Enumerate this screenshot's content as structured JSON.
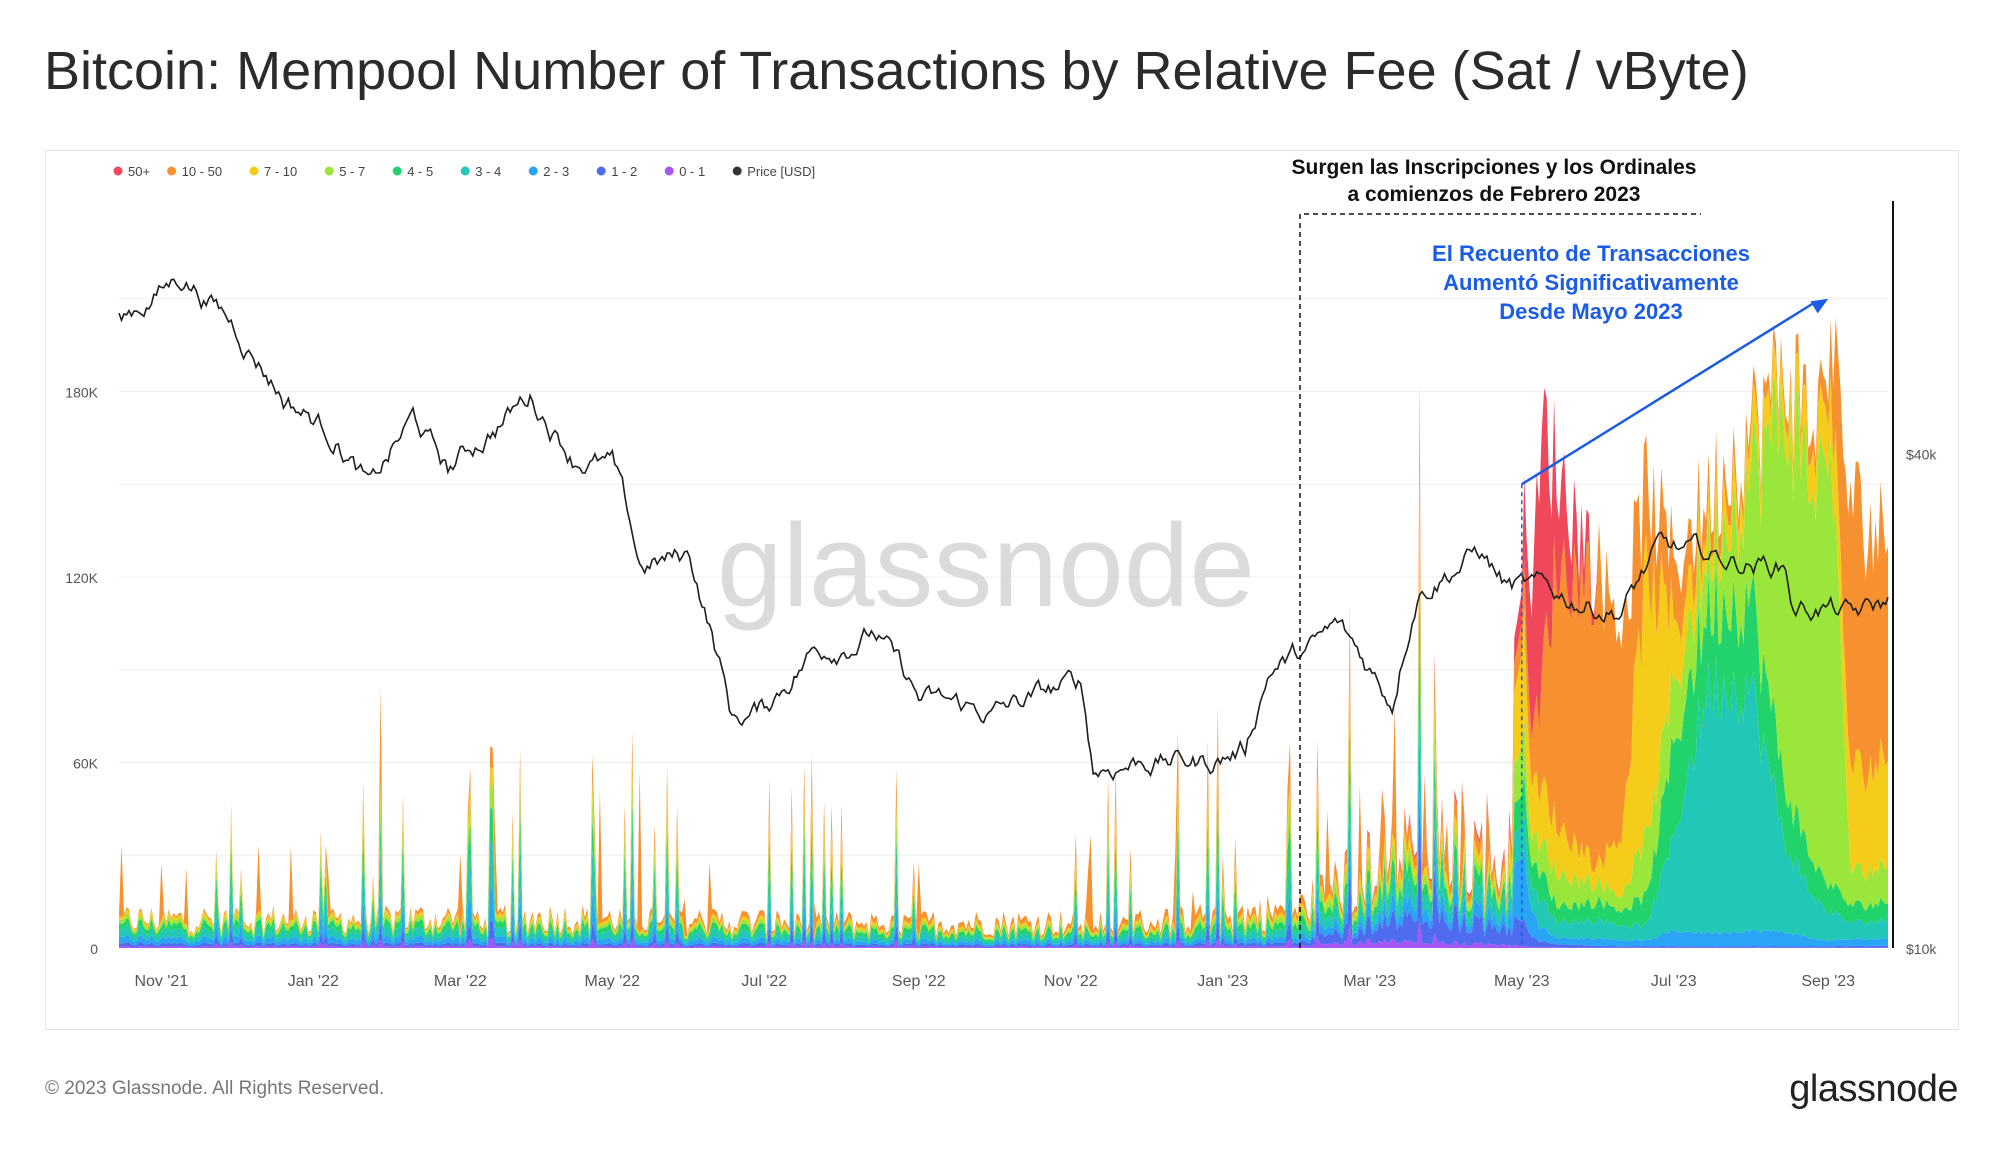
{
  "title": "Bitcoin: Mempool Number of Transactions by Relative Fee (Sat / vByte)",
  "footer": {
    "copyright": "© 2023 Glassnode. All Rights Reserved.",
    "logo": "glassnode"
  },
  "watermark": "glassnode",
  "chart_data": {
    "type": "area",
    "title": "Bitcoin: Mempool Number of Transactions by Relative Fee (Sat / vByte)",
    "stacked": true,
    "legend_position": "top-left",
    "grid": true,
    "x_range": [
      "2021-10-15",
      "2023-09-25"
    ],
    "x_ticks": [
      {
        "date": "2021-11-01",
        "label": "Nov '21"
      },
      {
        "date": "2022-01-01",
        "label": "Jan '22"
      },
      {
        "date": "2022-03-01",
        "label": "Mar '22"
      },
      {
        "date": "2022-05-01",
        "label": "May '22"
      },
      {
        "date": "2022-07-01",
        "label": "Jul '22"
      },
      {
        "date": "2022-09-01",
        "label": "Sep '22"
      },
      {
        "date": "2022-11-01",
        "label": "Nov '22"
      },
      {
        "date": "2023-01-01",
        "label": "Jan '23"
      },
      {
        "date": "2023-03-01",
        "label": "Mar '23"
      },
      {
        "date": "2023-05-01",
        "label": "May '23"
      },
      {
        "date": "2023-07-01",
        "label": "Jul '23"
      },
      {
        "date": "2023-09-01",
        "label": "Sep '23"
      }
    ],
    "y_left": {
      "min": 0,
      "max": 240000,
      "ticks": [
        {
          "v": 0,
          "label": "0"
        },
        {
          "v": 60000,
          "label": "60K"
        },
        {
          "v": 120000,
          "label": "120K"
        },
        {
          "v": 180000,
          "label": "180K"
        }
      ]
    },
    "y_right": {
      "scale": "log",
      "min": 10000,
      "max": 80000,
      "ticks": [
        {
          "v": 10000,
          "label": "$10k"
        },
        {
          "v": 40000,
          "label": "$40k"
        }
      ]
    },
    "series": [
      {
        "name": "0 - 1",
        "color": "#a855f7"
      },
      {
        "name": "1 - 2",
        "color": "#4f6cf0"
      },
      {
        "name": "2 - 3",
        "color": "#2aa4f4"
      },
      {
        "name": "3 - 4",
        "color": "#22c7b8"
      },
      {
        "name": "4 - 5",
        "color": "#22d36b"
      },
      {
        "name": "5 - 7",
        "color": "#9be63a"
      },
      {
        "name": "7 - 10",
        "color": "#f6cc1a"
      },
      {
        "name": "10 - 50",
        "color": "#f7902f"
      },
      {
        "name": "50+",
        "color": "#f0485a"
      }
    ],
    "legend": [
      {
        "name": "50+",
        "color": "#f0485a"
      },
      {
        "name": "10 - 50",
        "color": "#f7902f"
      },
      {
        "name": "7 - 10",
        "color": "#f6cc1a"
      },
      {
        "name": "5 - 7",
        "color": "#9be63a"
      },
      {
        "name": "4 - 5",
        "color": "#22d36b"
      },
      {
        "name": "3 - 4",
        "color": "#22c7b8"
      },
      {
        "name": "2 - 3",
        "color": "#2aa4f4"
      },
      {
        "name": "1 - 2",
        "color": "#4f6cf0"
      },
      {
        "name": "0 - 1",
        "color": "#a855f7"
      },
      {
        "name": "Price [USD]",
        "color": "#333333"
      }
    ],
    "stack_samples": [
      {
        "date": "2021-10-15",
        "v": [
          400,
          800,
          1500,
          2000,
          1500,
          1000,
          800,
          400,
          0
        ]
      },
      {
        "date": "2022-01-01",
        "v": [
          400,
          800,
          1500,
          2000,
          1500,
          1000,
          800,
          600,
          0
        ]
      },
      {
        "date": "2022-04-01",
        "v": [
          400,
          800,
          1500,
          2000,
          1500,
          1000,
          800,
          1000,
          0
        ]
      },
      {
        "date": "2022-08-01",
        "v": [
          300,
          700,
          1000,
          1500,
          1200,
          800,
          700,
          1200,
          0
        ]
      },
      {
        "date": "2022-12-01",
        "v": [
          300,
          700,
          1000,
          1500,
          1200,
          800,
          700,
          1500,
          0
        ]
      },
      {
        "date": "2023-02-01",
        "v": [
          500,
          1000,
          1500,
          2000,
          2000,
          1500,
          1000,
          2000,
          0
        ]
      },
      {
        "date": "2023-03-01",
        "v": [
          2000,
          5000,
          3000,
          4000,
          3000,
          3000,
          2000,
          3000,
          500
        ]
      },
      {
        "date": "2023-04-01",
        "v": [
          1500,
          8000,
          4000,
          5000,
          4000,
          3000,
          3000,
          4000,
          1000
        ]
      },
      {
        "date": "2023-04-25",
        "v": [
          1000,
          5000,
          3000,
          4000,
          3000,
          2000,
          2000,
          3000,
          1000
        ]
      },
      {
        "date": "2023-05-01",
        "v": [
          500,
          8000,
          20000,
          10000,
          10000,
          15000,
          30000,
          10000,
          10000
        ]
      },
      {
        "date": "2023-05-08",
        "v": [
          300,
          2000,
          5000,
          10000,
          10000,
          10000,
          20000,
          30000,
          90000
        ]
      },
      {
        "date": "2023-05-15",
        "v": [
          200,
          1000,
          2000,
          5000,
          5000,
          10000,
          15000,
          80000,
          30000
        ]
      },
      {
        "date": "2023-06-01",
        "v": [
          100,
          500,
          2000,
          5000,
          5000,
          5000,
          5000,
          80000,
          0
        ]
      },
      {
        "date": "2023-06-10",
        "v": [
          100,
          500,
          2000,
          5000,
          5000,
          5000,
          20000,
          70000,
          0
        ]
      },
      {
        "date": "2023-06-20",
        "v": [
          100,
          500,
          2000,
          5000,
          10000,
          20000,
          90000,
          30000,
          0
        ]
      },
      {
        "date": "2023-07-01",
        "v": [
          100,
          500,
          5000,
          30000,
          30000,
          20000,
          20000,
          20000,
          0
        ]
      },
      {
        "date": "2023-07-15",
        "v": [
          100,
          500,
          5000,
          90000,
          30000,
          20000,
          10000,
          10000,
          0
        ]
      },
      {
        "date": "2023-08-01",
        "v": [
          100,
          500,
          5000,
          80000,
          30000,
          40000,
          10000,
          5000,
          0
        ]
      },
      {
        "date": "2023-08-15",
        "v": [
          100,
          500,
          5000,
          30000,
          20000,
          130000,
          10000,
          5000,
          0
        ]
      },
      {
        "date": "2023-09-01",
        "v": [
          100,
          500,
          2000,
          10000,
          10000,
          160000,
          20000,
          10000,
          0
        ]
      },
      {
        "date": "2023-09-10",
        "v": [
          100,
          500,
          2000,
          5000,
          5000,
          10000,
          30000,
          80000,
          0
        ]
      },
      {
        "date": "2023-09-25",
        "v": [
          100,
          500,
          2000,
          5000,
          5000,
          10000,
          30000,
          60000,
          0
        ]
      }
    ],
    "total_samples": [
      {
        "date": "2023-05-05",
        "v": 120000
      },
      {
        "date": "2023-05-10",
        "v": 175000
      },
      {
        "date": "2023-05-20",
        "v": 150000
      },
      {
        "date": "2023-06-10",
        "v": 110000
      },
      {
        "date": "2023-06-20",
        "v": 155000
      },
      {
        "date": "2023-07-01",
        "v": 130000
      },
      {
        "date": "2023-07-20",
        "v": 160000
      },
      {
        "date": "2023-08-01",
        "v": 175000
      },
      {
        "date": "2023-08-15",
        "v": 195000
      },
      {
        "date": "2023-08-28",
        "v": 175000
      },
      {
        "date": "2023-09-01",
        "v": 210000
      },
      {
        "date": "2023-09-10",
        "v": 150000
      },
      {
        "date": "2023-09-20",
        "v": 140000
      }
    ],
    "price_series": [
      {
        "date": "2021-10-15",
        "v": 58000
      },
      {
        "date": "2021-11-10",
        "v": 66000
      },
      {
        "date": "2021-12-01",
        "v": 57000
      },
      {
        "date": "2021-12-20",
        "v": 47000
      },
      {
        "date": "2022-01-10",
        "v": 42000
      },
      {
        "date": "2022-01-24",
        "v": 36000
      },
      {
        "date": "2022-02-10",
        "v": 44000
      },
      {
        "date": "2022-02-24",
        "v": 38000
      },
      {
        "date": "2022-03-29",
        "v": 47000
      },
      {
        "date": "2022-04-15",
        "v": 40000
      },
      {
        "date": "2022-05-01",
        "v": 38500
      },
      {
        "date": "2022-05-12",
        "v": 29000
      },
      {
        "date": "2022-06-01",
        "v": 30000
      },
      {
        "date": "2022-06-18",
        "v": 19000
      },
      {
        "date": "2022-07-01",
        "v": 19500
      },
      {
        "date": "2022-07-20",
        "v": 23000
      },
      {
        "date": "2022-08-14",
        "v": 24300
      },
      {
        "date": "2022-09-01",
        "v": 20000
      },
      {
        "date": "2022-09-15",
        "v": 19700
      },
      {
        "date": "2022-10-01",
        "v": 19300
      },
      {
        "date": "2022-10-25",
        "v": 20500
      },
      {
        "date": "2022-11-05",
        "v": 21000
      },
      {
        "date": "2022-11-10",
        "v": 16500
      },
      {
        "date": "2022-12-01",
        "v": 17000
      },
      {
        "date": "2022-12-25",
        "v": 16800
      },
      {
        "date": "2023-01-10",
        "v": 17500
      },
      {
        "date": "2023-01-20",
        "v": 22000
      },
      {
        "date": "2023-02-05",
        "v": 23000
      },
      {
        "date": "2023-02-16",
        "v": 24500
      },
      {
        "date": "2023-03-10",
        "v": 20000
      },
      {
        "date": "2023-03-20",
        "v": 27500
      },
      {
        "date": "2023-04-14",
        "v": 30400
      },
      {
        "date": "2023-04-25",
        "v": 27500
      },
      {
        "date": "2023-05-10",
        "v": 27000
      },
      {
        "date": "2023-06-10",
        "v": 25800
      },
      {
        "date": "2023-06-25",
        "v": 30500
      },
      {
        "date": "2023-07-15",
        "v": 29800
      },
      {
        "date": "2023-08-15",
        "v": 29200
      },
      {
        "date": "2023-08-18",
        "v": 26000
      },
      {
        "date": "2023-09-01",
        "v": 26000
      },
      {
        "date": "2023-09-11",
        "v": 25200
      },
      {
        "date": "2023-09-25",
        "v": 26200
      }
    ],
    "annotations": [
      {
        "id": "inscriptions",
        "lines": [
          "Surgen las Inscripciones y los Ordinales",
          "a comienzos de Febrero 2023"
        ],
        "color": "#111111",
        "region": {
          "start": "2023-02-01",
          "end": "2023-09-25"
        },
        "style": "dashed-box"
      },
      {
        "id": "tx-count",
        "lines": [
          "El Recuento de Transacciones",
          "Aumentó Significativamente",
          "Desde Mayo 2023"
        ],
        "color": "#1a5ce6",
        "arrow": {
          "from": {
            "date": "2023-05-01",
            "v": 150000
          },
          "to": {
            "date": "2023-09-01",
            "v": 210000
          }
        },
        "marker_date": "2023-05-01"
      }
    ]
  }
}
